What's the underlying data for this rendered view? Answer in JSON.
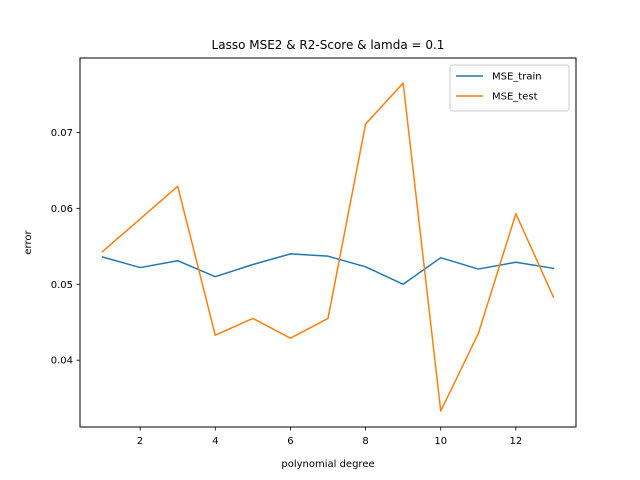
{
  "chart_data": {
    "type": "line",
    "title": "Lasso MSE2 & R2-Score & lamda = 0.1",
    "xlabel": "polynomial degree",
    "ylabel": "error",
    "x": [
      1,
      2,
      3,
      4,
      5,
      6,
      7,
      8,
      9,
      10,
      11,
      12,
      13
    ],
    "xlim": [
      0.4,
      13.6
    ],
    "ylim": [
      0.0312,
      0.0798
    ],
    "xticks": [
      2,
      4,
      6,
      8,
      10,
      12
    ],
    "yticks": [
      0.04,
      0.05,
      0.06,
      0.07
    ],
    "xtick_labels": [
      "2",
      "4",
      "6",
      "8",
      "10",
      "12"
    ],
    "ytick_labels": [
      "0.04",
      "0.05",
      "0.06",
      "0.07"
    ],
    "grid": false,
    "legend_position": "top-right",
    "series": [
      {
        "name": "MSE_train",
        "color": "#1f77b4",
        "values": [
          0.0536,
          0.0522,
          0.0531,
          0.051,
          0.0526,
          0.054,
          0.0537,
          0.0523,
          0.05,
          0.0535,
          0.052,
          0.0529,
          0.0521
        ]
      },
      {
        "name": "MSE_test",
        "color": "#ff7f0e",
        "values": [
          0.0543,
          0.0586,
          0.0629,
          0.0433,
          0.0455,
          0.0429,
          0.0455,
          0.0711,
          0.0765,
          0.0333,
          0.0435,
          0.0593,
          0.0483
        ]
      }
    ]
  }
}
